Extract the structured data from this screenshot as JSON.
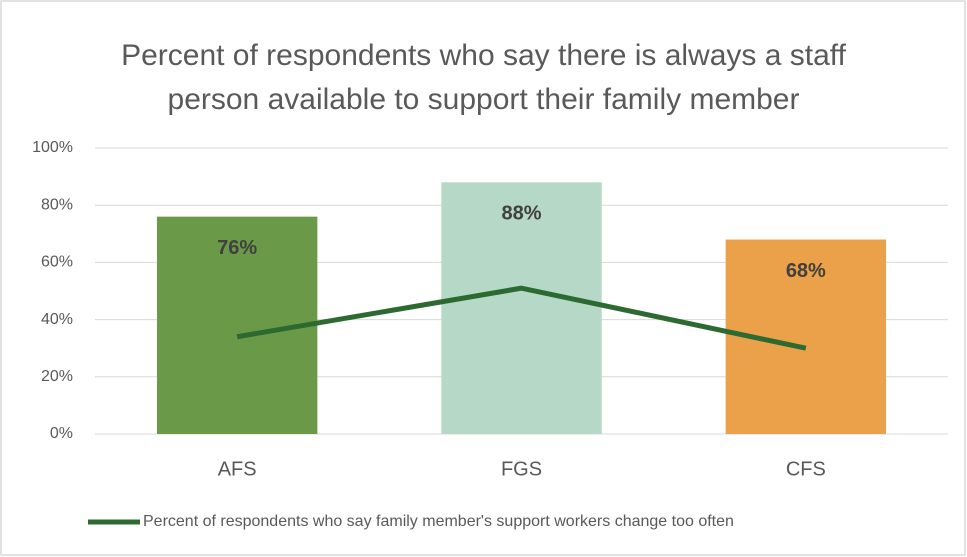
{
  "chart_data": {
    "type": "bar",
    "title": "Percent of respondents who say there is always a staff person available to support their family member",
    "categories": [
      "AFS",
      "FGS",
      "CFS"
    ],
    "values": [
      76,
      88,
      68
    ],
    "value_labels": [
      "76%",
      "88%",
      "68%"
    ],
    "colors": [
      "#6a9a48",
      "#b5d9c6",
      "#eba04a"
    ],
    "series": [
      {
        "name": "Percent of respondents who say family member's support workers change too often",
        "color": "#2d6a31",
        "type": "line",
        "values": [
          34,
          51,
          30
        ]
      }
    ],
    "ylim": [
      0,
      100
    ],
    "yticks": [
      {
        "value": 0,
        "label": "0%"
      },
      {
        "value": 20,
        "label": "20%"
      },
      {
        "value": 40,
        "label": "40%"
      },
      {
        "value": 60,
        "label": "60%"
      },
      {
        "value": 80,
        "label": "80%"
      },
      {
        "value": 100,
        "label": "100%"
      }
    ],
    "grid": true,
    "legend": "bottom"
  }
}
